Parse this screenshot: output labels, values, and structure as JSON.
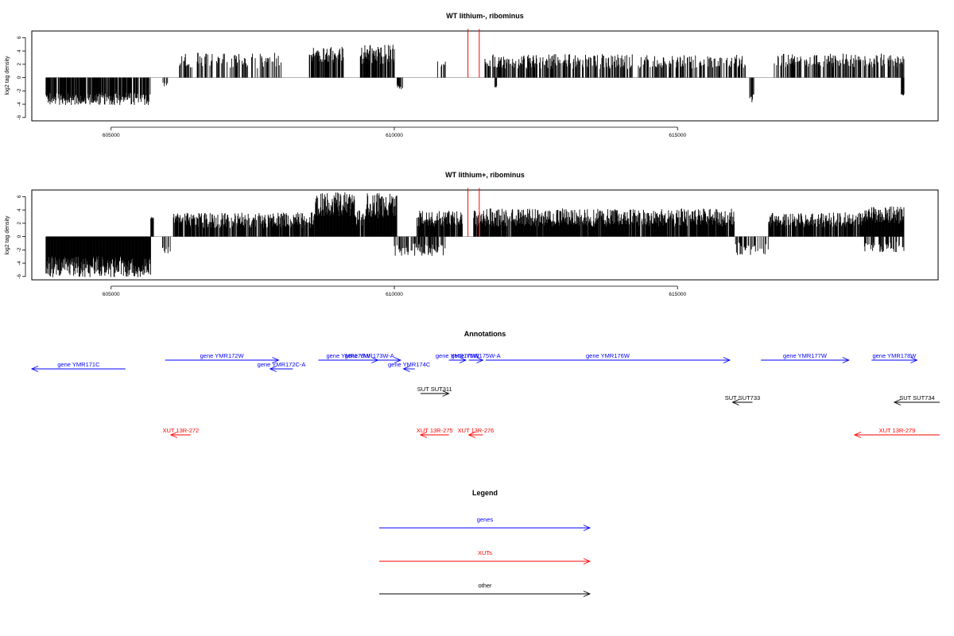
{
  "chart_data": [
    {
      "type": "bar",
      "title": "WT lithium-, ribominus",
      "ylabel": "log2 tag density",
      "xlim": [
        603600,
        619600
      ],
      "ylim": [
        -6.5,
        7
      ],
      "xticks": [
        605000,
        610000,
        615000
      ],
      "yticks": [
        -6,
        -4,
        -2,
        0,
        2,
        4,
        6
      ],
      "grid": false,
      "segments": [
        {
          "start": 603850,
          "end": 605700,
          "sign": -1,
          "amp": 3.0,
          "jitter": 1.2,
          "density": 0.85
        },
        {
          "start": 605900,
          "end": 606000,
          "sign": -1,
          "amp": 1.0,
          "jitter": 0.5,
          "density": 0.5
        },
        {
          "start": 606200,
          "end": 608000,
          "sign": 1,
          "amp": 2.3,
          "jitter": 1.5,
          "density": 0.35
        },
        {
          "start": 608500,
          "end": 609100,
          "sign": 1,
          "amp": 3.2,
          "jitter": 1.5,
          "density": 0.8
        },
        {
          "start": 609400,
          "end": 610000,
          "sign": 1,
          "amp": 3.2,
          "jitter": 1.8,
          "density": 0.75
        },
        {
          "start": 610050,
          "end": 610150,
          "sign": -1,
          "amp": 1.4,
          "jitter": 0.6,
          "density": 0.5
        },
        {
          "start": 610700,
          "end": 610900,
          "sign": 1,
          "amp": 2.0,
          "jitter": 0.6,
          "density": 0.2
        },
        {
          "start": 611600,
          "end": 614200,
          "sign": 1,
          "amp": 2.2,
          "jitter": 1.4,
          "density": 0.55
        },
        {
          "start": 611750,
          "end": 611850,
          "sign": -1,
          "amp": 1.2,
          "jitter": 0.4,
          "density": 0.3
        },
        {
          "start": 614300,
          "end": 616200,
          "sign": 1,
          "amp": 2.2,
          "jitter": 1.3,
          "density": 0.5
        },
        {
          "start": 616250,
          "end": 616350,
          "sign": -1,
          "amp": 3.0,
          "jitter": 1.0,
          "density": 0.4
        },
        {
          "start": 616700,
          "end": 619000,
          "sign": 1,
          "amp": 2.4,
          "jitter": 1.3,
          "density": 0.55
        },
        {
          "start": 618950,
          "end": 619000,
          "sign": -1,
          "amp": 2.6,
          "jitter": 0.3,
          "density": 1.0
        }
      ],
      "red_markers": [
        {
          "x": 611300,
          "top": 7.3
        },
        {
          "x": 611500,
          "top": 7.3
        }
      ]
    },
    {
      "type": "bar",
      "title": "WT lithium+, ribominus",
      "ylabel": "log2 tag density",
      "xlim": [
        603600,
        619600
      ],
      "ylim": [
        -6.5,
        7
      ],
      "xticks": [
        605000,
        610000,
        615000
      ],
      "yticks": [
        -6,
        -4,
        -2,
        0,
        2,
        4,
        6
      ],
      "grid": false,
      "segments": [
        {
          "start": 603850,
          "end": 605700,
          "sign": -1,
          "amp": 4.2,
          "jitter": 2.0,
          "density": 1.0
        },
        {
          "start": 605700,
          "end": 605750,
          "sign": 1,
          "amp": 2.8,
          "jitter": 0.2,
          "density": 1.0
        },
        {
          "start": 605900,
          "end": 606050,
          "sign": -1,
          "amp": 1.8,
          "jitter": 0.8,
          "density": 0.5
        },
        {
          "start": 606100,
          "end": 608600,
          "sign": 1,
          "amp": 2.2,
          "jitter": 1.5,
          "density": 0.8
        },
        {
          "start": 608600,
          "end": 609300,
          "sign": 1,
          "amp": 4.5,
          "jitter": 2.3,
          "density": 1.0
        },
        {
          "start": 609300,
          "end": 609500,
          "sign": 1,
          "amp": 2.5,
          "jitter": 1.5,
          "density": 0.8
        },
        {
          "start": 609500,
          "end": 610050,
          "sign": 1,
          "amp": 4.2,
          "jitter": 2.5,
          "density": 1.0
        },
        {
          "start": 610000,
          "end": 610900,
          "sign": -1,
          "amp": 1.8,
          "jitter": 1.2,
          "density": 0.6
        },
        {
          "start": 610400,
          "end": 611200,
          "sign": 1,
          "amp": 2.5,
          "jitter": 1.5,
          "density": 0.9
        },
        {
          "start": 611400,
          "end": 616000,
          "sign": 1,
          "amp": 2.6,
          "jitter": 1.7,
          "density": 0.95
        },
        {
          "start": 616000,
          "end": 616600,
          "sign": -1,
          "amp": 1.6,
          "jitter": 1.2,
          "density": 0.4
        },
        {
          "start": 616600,
          "end": 618300,
          "sign": 1,
          "amp": 2.3,
          "jitter": 1.4,
          "density": 0.85
        },
        {
          "start": 618300,
          "end": 619000,
          "sign": 1,
          "amp": 3.0,
          "jitter": 1.6,
          "density": 1.0
        },
        {
          "start": 618300,
          "end": 619000,
          "sign": -1,
          "amp": 1.4,
          "jitter": 1.0,
          "density": 0.5
        }
      ],
      "red_markers": [
        {
          "x": 611300,
          "top": 7.3
        },
        {
          "x": 611500,
          "top": 7.3
        }
      ]
    }
  ],
  "annotations": {
    "title": "Annotations",
    "xlim": [
      603600,
      619600
    ],
    "colors": {
      "genes": "#0000ff",
      "XUTs": "#ff0000",
      "other": "#000000"
    },
    "items": [
      {
        "label": "gene YMR171C",
        "start": 603600,
        "end": 605250,
        "dir": -1,
        "row": 1,
        "kind": "genes"
      },
      {
        "label": "gene YMR172W",
        "start": 605950,
        "end": 607950,
        "dir": 1,
        "row": 0,
        "kind": "genes"
      },
      {
        "label": "gene YMR172C-A",
        "start": 607800,
        "end": 608200,
        "dir": -1,
        "row": 1,
        "kind": "genes"
      },
      {
        "label": "gene YMR173W",
        "start": 608650,
        "end": 609700,
        "dir": 1,
        "row": 0,
        "kind": "genes"
      },
      {
        "label": "gene YMR173W-A",
        "start": 609000,
        "end": 610100,
        "dir": 1,
        "row": 0,
        "kind": "genes"
      },
      {
        "label": "gene YMR174C",
        "start": 610150,
        "end": 610350,
        "dir": -1,
        "row": 1,
        "kind": "genes"
      },
      {
        "label": "gene YMR175W",
        "start": 610950,
        "end": 611250,
        "dir": 1,
        "row": 0,
        "kind": "genes"
      },
      {
        "label": "gene YMR175W-A",
        "start": 611300,
        "end": 611550,
        "dir": 1,
        "row": 0,
        "kind": "genes"
      },
      {
        "label": "gene YMR176W",
        "start": 611600,
        "end": 615900,
        "dir": 1,
        "row": 0,
        "kind": "genes"
      },
      {
        "label": "gene YMR177W",
        "start": 616450,
        "end": 618000,
        "dir": 1,
        "row": 0,
        "kind": "genes"
      },
      {
        "label": "gene YMR178W",
        "start": 618400,
        "end": 619200,
        "dir": 1,
        "row": 0,
        "kind": "genes"
      },
      {
        "label": "SUT SUT311",
        "start": 610450,
        "end": 610950,
        "dir": 1,
        "row": 2,
        "kind": "other"
      },
      {
        "label": "SUT SUT733",
        "start": 615950,
        "end": 616300,
        "dir": -1,
        "row": 3,
        "kind": "other"
      },
      {
        "label": "SUT SUT734",
        "start": 618800,
        "end": 619600,
        "dir": -1,
        "row": 3,
        "kind": "other"
      },
      {
        "label": "XUT 13R-272",
        "start": 606050,
        "end": 606400,
        "dir": -1,
        "row": 4,
        "kind": "XUTs"
      },
      {
        "label": "XUT 13R-275",
        "start": 610450,
        "end": 610950,
        "dir": -1,
        "row": 4,
        "kind": "XUTs"
      },
      {
        "label": "XUT 13R-276",
        "start": 611300,
        "end": 611550,
        "dir": -1,
        "row": 4,
        "kind": "XUTs"
      },
      {
        "label": "XUT 13R-279",
        "start": 618100,
        "end": 619600,
        "dir": -1,
        "row": 4,
        "kind": "XUTs"
      }
    ]
  },
  "legend": {
    "title": "Legend",
    "entries": [
      {
        "label": "genes",
        "color": "#0000ff"
      },
      {
        "label": "XUTs",
        "color": "#ff0000"
      },
      {
        "label": "other",
        "color": "#000000"
      }
    ]
  }
}
